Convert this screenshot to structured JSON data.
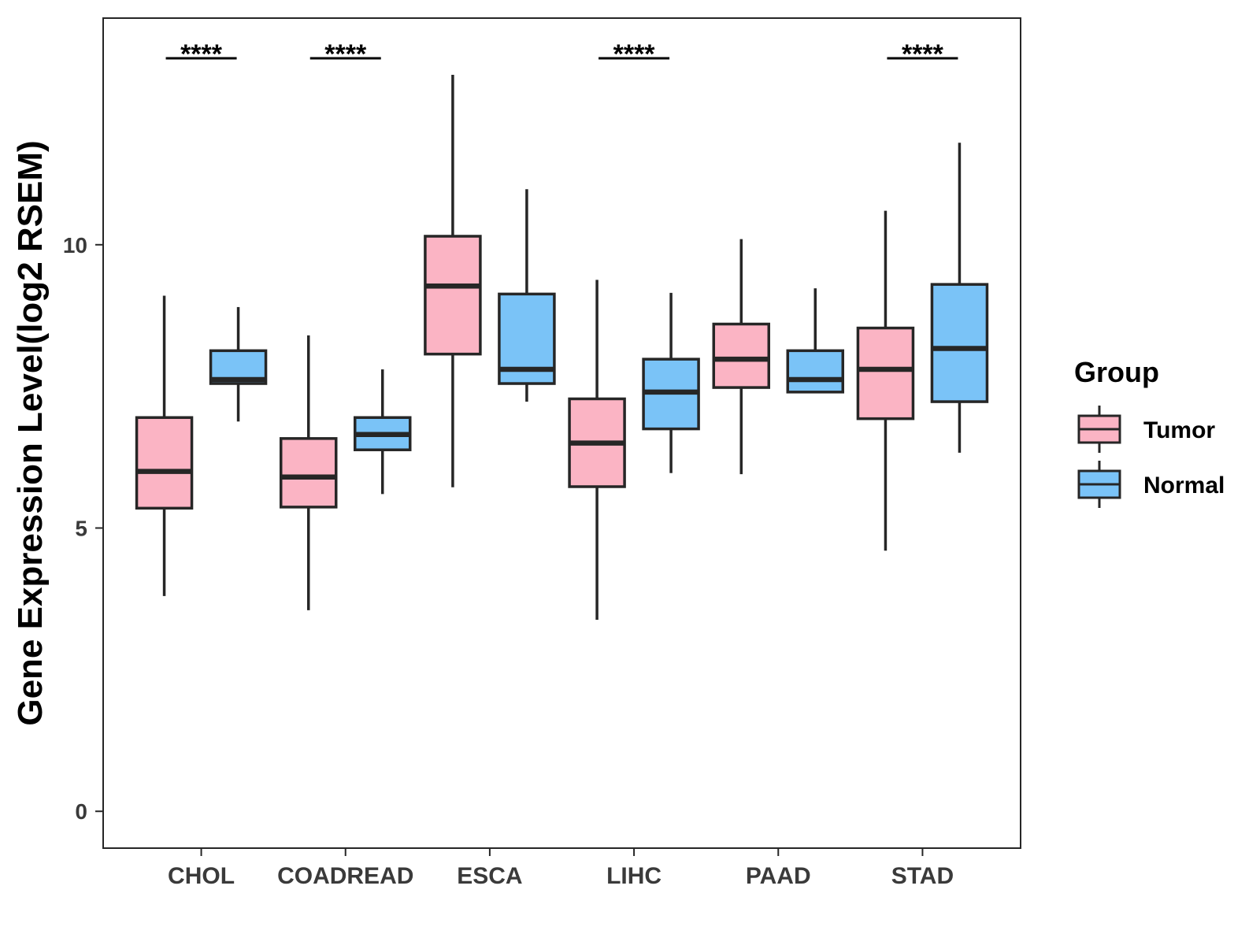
{
  "chart_data": {
    "type": "boxplot",
    "ylabel": "Gene Expression Level(log2 RSEM)",
    "xlabel": "",
    "ylim": [
      -0.65,
      14.0
    ],
    "yticks": [
      0,
      5,
      10
    ],
    "grid": false,
    "legend": {
      "title": "Group",
      "position": "right",
      "entries": [
        "Tumor",
        "Normal"
      ]
    },
    "colors": {
      "Tumor": "#FBB4C4",
      "Normal": "#7AC3F7",
      "outline": "#262626"
    },
    "categories": [
      "CHOL",
      "COADREAD",
      "ESCA",
      "LIHC",
      "PAAD",
      "STAD"
    ],
    "series": [
      {
        "name": "Tumor",
        "boxes": [
          {
            "min": 3.8,
            "q1": 5.35,
            "median": 6.0,
            "q3": 6.95,
            "max": 9.1
          },
          {
            "min": 3.55,
            "q1": 5.37,
            "median": 5.9,
            "q3": 6.58,
            "max": 8.4
          },
          {
            "min": 5.72,
            "q1": 8.07,
            "median": 9.27,
            "q3": 10.15,
            "max": 13.0
          },
          {
            "min": 3.38,
            "q1": 5.73,
            "median": 6.5,
            "q3": 7.28,
            "max": 9.38
          },
          {
            "min": 5.95,
            "q1": 7.48,
            "median": 7.98,
            "q3": 8.6,
            "max": 10.1
          },
          {
            "min": 4.6,
            "q1": 6.93,
            "median": 7.8,
            "q3": 8.53,
            "max": 10.6
          }
        ]
      },
      {
        "name": "Normal",
        "boxes": [
          {
            "min": 6.88,
            "q1": 7.55,
            "median": 7.62,
            "q3": 8.13,
            "max": 8.9
          },
          {
            "min": 5.6,
            "q1": 6.38,
            "median": 6.65,
            "q3": 6.95,
            "max": 7.8
          },
          {
            "min": 7.23,
            "q1": 7.55,
            "median": 7.8,
            "q3": 9.13,
            "max": 10.98
          },
          {
            "min": 5.97,
            "q1": 6.75,
            "median": 7.4,
            "q3": 7.98,
            "max": 9.15
          },
          {
            "min": null,
            "q1": 7.4,
            "median": 7.62,
            "q3": 8.13,
            "max": 9.23
          },
          {
            "min": 6.33,
            "q1": 7.23,
            "median": 8.17,
            "q3": 9.3,
            "max": 11.8
          }
        ]
      }
    ],
    "annotations": [
      {
        "category": "CHOL",
        "text": "****"
      },
      {
        "category": "COADREAD",
        "text": "****"
      },
      {
        "category": "LIHC",
        "text": "****"
      },
      {
        "category": "STAD",
        "text": "****"
      }
    ]
  }
}
